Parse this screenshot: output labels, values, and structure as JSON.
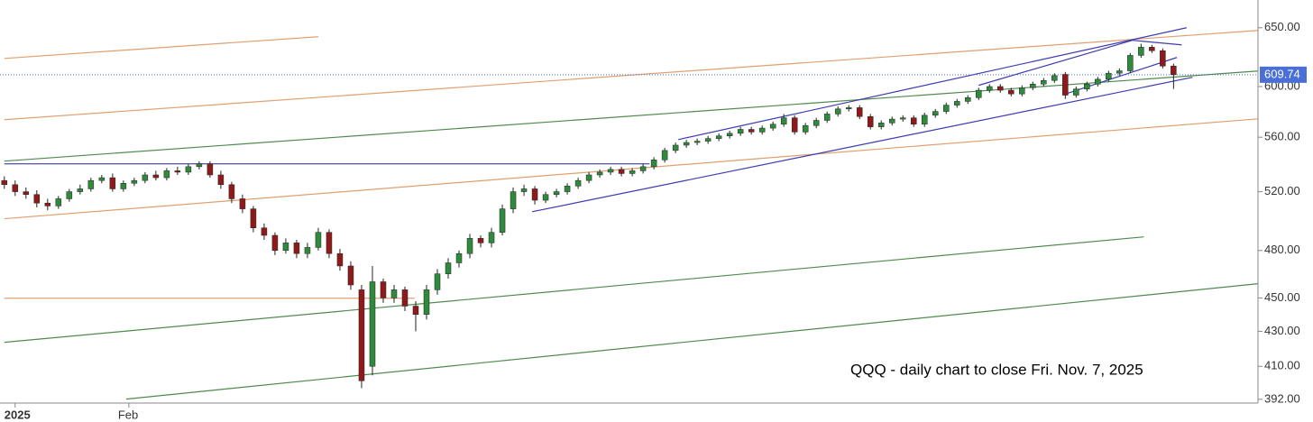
{
  "chart_data": {
    "type": "candlestick",
    "annotation": "QQQ - daily chart to close Fri. Nov. 7, 2025",
    "log_scale": true,
    "ylim": [
      390,
      675
    ],
    "yticks": [
      {
        "value": 650,
        "label": "650.00"
      },
      {
        "value": 600,
        "label": "600.00"
      },
      {
        "value": 560,
        "label": "560.00"
      },
      {
        "value": 520,
        "label": "520.00"
      },
      {
        "value": 480,
        "label": "480.00"
      },
      {
        "value": 450,
        "label": "450.00"
      },
      {
        "value": 430,
        "label": "430.00"
      },
      {
        "value": 410,
        "label": "410.00"
      },
      {
        "value": 392,
        "label": "392.00"
      }
    ],
    "xlim": [
      -0.4,
      115.8
    ],
    "xticks": [
      {
        "value": 1,
        "label": "2025"
      },
      {
        "value": 11.5,
        "label": "Feb"
      }
    ],
    "up_color": "#2f8a3c",
    "down_color": "#8e1b1b",
    "last_price": {
      "value": 609.74,
      "label": "609.74",
      "color": "#4a6fd6"
    },
    "open": [
      528,
      525,
      520,
      518,
      512,
      510,
      515,
      520,
      522,
      528,
      530,
      522,
      526,
      528,
      532,
      530,
      535,
      534,
      538,
      540,
      532,
      525,
      515,
      508,
      495,
      490,
      480,
      485,
      478,
      482,
      492,
      478,
      470,
      455,
      410,
      460,
      450,
      455,
      445,
      440,
      455,
      465,
      472,
      478,
      488,
      485,
      492,
      508,
      520,
      522,
      514,
      518,
      520,
      524,
      528,
      532,
      534,
      536,
      533,
      535,
      538,
      543,
      550,
      554,
      556,
      557,
      559,
      561,
      563,
      566,
      564,
      567,
      570,
      575,
      564,
      569,
      573,
      578,
      582,
      583,
      576,
      568,
      571,
      574,
      575,
      570,
      577,
      580,
      585,
      588,
      591,
      597,
      600,
      597,
      594,
      599,
      602,
      605,
      610,
      593,
      598,
      602,
      606,
      611,
      613,
      626,
      633,
      630,
      617
    ],
    "high": [
      531,
      528,
      523,
      521,
      515,
      517,
      522,
      525,
      530,
      532,
      533,
      528,
      530,
      534,
      535,
      537,
      538,
      540,
      542,
      542,
      535,
      527,
      518,
      510,
      498,
      492,
      488,
      487,
      485,
      495,
      494,
      481,
      473,
      458,
      470,
      462,
      458,
      457,
      448,
      458,
      468,
      475,
      480,
      491,
      490,
      495,
      511,
      523,
      525,
      524,
      520,
      522,
      526,
      530,
      534,
      536,
      538,
      538,
      537,
      540,
      545,
      552,
      556,
      558,
      559,
      561,
      563,
      565,
      568,
      568,
      569,
      572,
      578,
      577,
      571,
      575,
      580,
      584,
      585,
      585,
      578,
      573,
      576,
      577,
      577,
      579,
      582,
      587,
      590,
      593,
      599,
      602,
      602,
      599,
      601,
      604,
      607,
      611,
      612,
      600,
      604,
      608,
      613,
      615,
      628,
      636,
      635,
      632,
      619
    ],
    "low": [
      522,
      517,
      515,
      509,
      507,
      508,
      513,
      518,
      520,
      526,
      520,
      520,
      524,
      526,
      528,
      528,
      532,
      532,
      536,
      530,
      522,
      512,
      505,
      492,
      487,
      477,
      478,
      475,
      475,
      480,
      475,
      467,
      455,
      398,
      405,
      447,
      447,
      442,
      430,
      437,
      452,
      462,
      469,
      475,
      482,
      482,
      490,
      505,
      517,
      511,
      512,
      516,
      518,
      522,
      526,
      530,
      532,
      531,
      531,
      533,
      536,
      541,
      548,
      552,
      554,
      555,
      557,
      559,
      561,
      562,
      562,
      565,
      568,
      562,
      562,
      567,
      571,
      576,
      580,
      574,
      566,
      566,
      569,
      572,
      568,
      568,
      575,
      578,
      583,
      586,
      589,
      595,
      595,
      592,
      592,
      597,
      600,
      603,
      590,
      591,
      596,
      600,
      604,
      609,
      611,
      624,
      628,
      615,
      598
    ],
    "close": [
      525,
      520,
      518,
      512,
      510,
      515,
      520,
      522,
      528,
      530,
      522,
      526,
      528,
      532,
      530,
      535,
      534,
      538,
      540,
      532,
      525,
      515,
      508,
      495,
      490,
      480,
      485,
      478,
      482,
      492,
      478,
      470,
      458,
      402,
      460,
      450,
      455,
      445,
      440,
      455,
      465,
      472,
      478,
      488,
      485,
      492,
      508,
      520,
      522,
      514,
      518,
      520,
      524,
      528,
      532,
      534,
      536,
      533,
      535,
      538,
      543,
      550,
      554,
      556,
      557,
      559,
      561,
      563,
      566,
      564,
      567,
      570,
      575,
      564,
      569,
      573,
      578,
      582,
      583,
      576,
      568,
      571,
      574,
      575,
      570,
      577,
      580,
      585,
      588,
      591,
      597,
      600,
      597,
      594,
      599,
      602,
      605,
      609,
      593,
      598,
      602,
      606,
      611,
      613,
      626,
      633,
      630,
      617,
      609.74
    ],
    "lines": [
      {
        "color": "#e0a070",
        "x": [
          0,
          29
        ],
        "y": [
          623.4,
          642.1
        ]
      },
      {
        "color": "#e0a070",
        "x": [
          0,
          115.8
        ],
        "y": [
          573.5,
          647.6
        ]
      },
      {
        "color": "#e0a070",
        "x": [
          0,
          115.8
        ],
        "y": [
          501.2,
          574.2
        ]
      },
      {
        "color": "#e0a070",
        "x": [
          0,
          37.9
        ],
        "y": [
          449.8,
          449.8
        ]
      },
      {
        "color": "#4f8a4f",
        "x": [
          0,
          115.8
        ],
        "y": [
          542.1,
          612.8
        ]
      },
      {
        "color": "#4f8a4f",
        "x": [
          0,
          105.25
        ],
        "y": [
          423.6,
          489.0
        ]
      },
      {
        "color": "#4f8a4f",
        "x": [
          11.25,
          115.8
        ],
        "y": [
          392.1,
          458.8
        ]
      },
      {
        "color": "#3b3bb0",
        "x": [
          0,
          59.6
        ],
        "y": [
          540.1,
          540.1
        ]
      },
      {
        "color": "#3b3bb0",
        "x": [
          48.75,
          109.75
        ],
        "y": [
          506.0,
          607.6
        ]
      },
      {
        "color": "#3b3bb0",
        "x": [
          62.25,
          109.2
        ],
        "y": [
          558.2,
          650
        ]
      },
      {
        "color": "#3b3bb0",
        "x": [
          97.9,
          108.3
        ],
        "y": [
          593.6,
          624.2
        ]
      },
      {
        "color": "#3b3bb0",
        "x": [
          90,
          104.2
        ],
        "y": [
          601.0,
          639.0
        ]
      },
      {
        "color": "#3b3bb0",
        "x": [
          104.2,
          108.75
        ],
        "y": [
          639.0,
          635.0
        ]
      }
    ]
  }
}
